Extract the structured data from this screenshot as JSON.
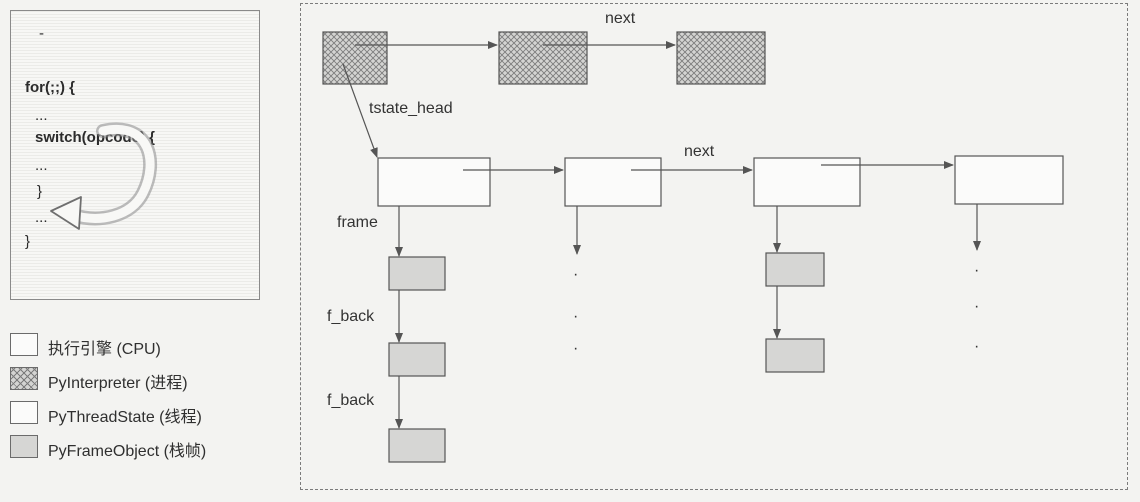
{
  "code_panel": {
    "lines": [
      "-",
      "for(;;) {",
      "...",
      "switch(opcode) {",
      "...",
      "}",
      "...",
      "}"
    ]
  },
  "legend": [
    {
      "label": "执行引擎 (CPU)",
      "swatch": "white"
    },
    {
      "label": "PyInterpreter (进程)",
      "swatch": "hatched"
    },
    {
      "label": "PyThreadState (线程)",
      "swatch": "white"
    },
    {
      "label": "PyFrameObject (栈帧)",
      "swatch": "gray"
    }
  ],
  "diagram": {
    "labels": {
      "interp_next": "next",
      "tstate_head": "tstate_head",
      "thread_next": "next",
      "frame": "frame",
      "f_back_1": "f_back",
      "f_back_2": "f_back"
    },
    "ellipsis_dot": "·"
  },
  "colors": {
    "hatch": "#7c7c7c",
    "frame_fill": "#d6d6d4",
    "line": "#555555",
    "background": "#f3f3f1"
  }
}
